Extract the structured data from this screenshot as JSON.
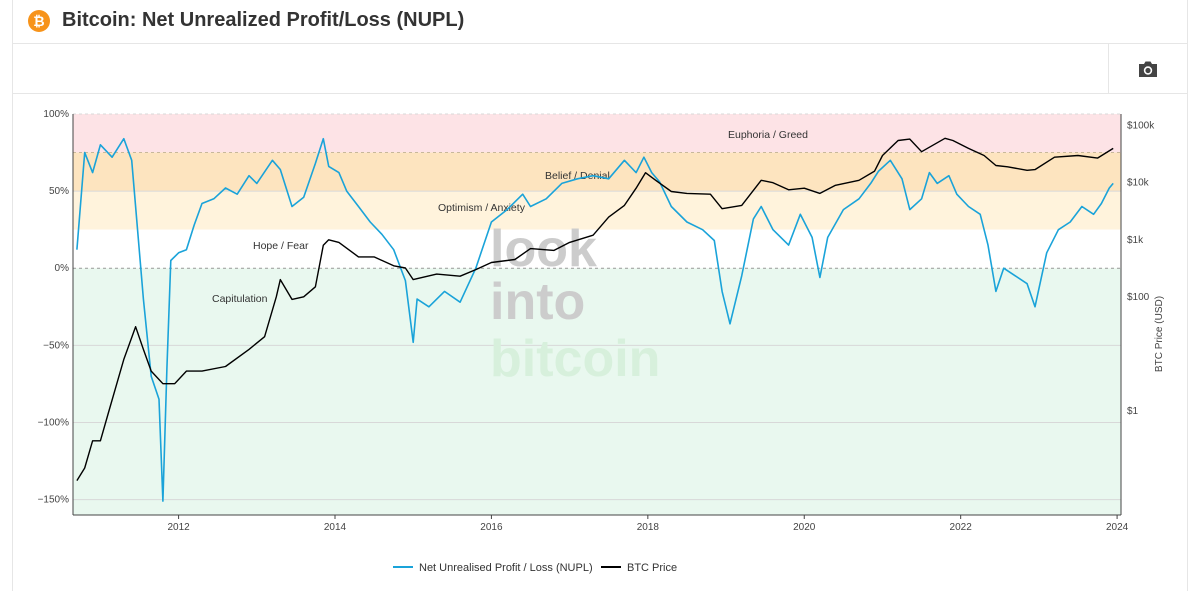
{
  "header": {
    "title": "Bitcoin: Net Unrealized Profit/Loss (NUPL)",
    "logo_glyph": "₿",
    "logo_color": "#f7931a"
  },
  "toolbar": {
    "camera_icon": "camera-icon"
  },
  "watermark": {
    "line1": "look",
    "line2": "into",
    "line3": "bitcoin"
  },
  "chart_data": {
    "type": "line",
    "x_ticks": [
      "2012",
      "2014",
      "2016",
      "2018",
      "2020",
      "2022",
      "2024"
    ],
    "x_range": [
      2010.65,
      2024.05
    ],
    "y_left": {
      "ticks": [
        "100%",
        "50%",
        "0%",
        "−50%",
        "−100%",
        "−150%"
      ],
      "tick_values": [
        100,
        50,
        0,
        -50,
        -100,
        -150
      ],
      "range": [
        -160,
        100
      ]
    },
    "y_right": {
      "label": "BTC Price (USD)",
      "scale": "log",
      "ticks": [
        "$100k",
        "$10k",
        "$1k",
        "$100",
        "$1"
      ],
      "tick_values": [
        100000,
        10000,
        1000,
        100,
        1
      ],
      "range": [
        0.015,
        160000
      ]
    },
    "zones": [
      {
        "label": "Euphoria / Greed",
        "from": 75,
        "to": 100,
        "color": "#fde3e6"
      },
      {
        "label": "Belief / Denial",
        "from": 50,
        "to": 75,
        "color": "#fde4bf"
      },
      {
        "label": "Optimism / Anxiety",
        "from": 25,
        "to": 50,
        "color": "#fff3dc"
      },
      {
        "label": "Hope / Fear",
        "from": 0,
        "to": 25,
        "color": "#ffffff"
      },
      {
        "label": "Capitulation",
        "from": -160,
        "to": 0,
        "color": "#e9f8ef"
      }
    ],
    "grid": true,
    "legend_position": "bottom-center",
    "series": [
      {
        "name": "Net Unrealised Profit / Loss (NUPL)",
        "axis": "left",
        "color": "#1aa3d9",
        "x": [
          2010.7,
          2010.8,
          2010.9,
          2011.0,
          2011.15,
          2011.3,
          2011.4,
          2011.45,
          2011.55,
          2011.65,
          2011.75,
          2011.8,
          2011.85,
          2011.9,
          2012.0,
          2012.1,
          2012.2,
          2012.3,
          2012.45,
          2012.6,
          2012.75,
          2012.9,
          2013.0,
          2013.2,
          2013.3,
          2013.45,
          2013.6,
          2013.75,
          2013.85,
          2013.92,
          2014.05,
          2014.15,
          2014.3,
          2014.45,
          2014.6,
          2014.75,
          2014.9,
          2015.0,
          2015.05,
          2015.2,
          2015.4,
          2015.6,
          2015.8,
          2016.0,
          2016.2,
          2016.4,
          2016.5,
          2016.7,
          2016.9,
          2017.1,
          2017.3,
          2017.5,
          2017.7,
          2017.85,
          2017.95,
          2018.05,
          2018.15,
          2018.3,
          2018.5,
          2018.7,
          2018.85,
          2018.95,
          2019.05,
          2019.2,
          2019.35,
          2019.45,
          2019.6,
          2019.8,
          2019.95,
          2020.1,
          2020.2,
          2020.3,
          2020.5,
          2020.7,
          2020.85,
          2020.95,
          2021.1,
          2021.25,
          2021.35,
          2021.5,
          2021.6,
          2021.7,
          2021.85,
          2021.95,
          2022.1,
          2022.25,
          2022.35,
          2022.45,
          2022.55,
          2022.7,
          2022.85,
          2022.95,
          2023.1,
          2023.25,
          2023.4,
          2023.55,
          2023.7,
          2023.8,
          2023.9,
          2023.95
        ],
        "y": [
          12,
          75,
          62,
          80,
          72,
          84,
          70,
          40,
          -20,
          -70,
          -85,
          -151,
          -65,
          5,
          10,
          12,
          28,
          42,
          45,
          52,
          48,
          60,
          55,
          70,
          64,
          40,
          46,
          68,
          84,
          66,
          62,
          50,
          40,
          30,
          22,
          12,
          -8,
          -48,
          -20,
          -25,
          -15,
          -22,
          0,
          30,
          38,
          48,
          40,
          45,
          55,
          58,
          60,
          58,
          70,
          62,
          72,
          62,
          56,
          40,
          30,
          25,
          18,
          -15,
          -36,
          -5,
          32,
          40,
          25,
          15,
          35,
          20,
          -6,
          20,
          38,
          45,
          55,
          63,
          70,
          58,
          38,
          45,
          62,
          55,
          60,
          48,
          40,
          35,
          15,
          -15,
          0,
          -5,
          -10,
          -25,
          10,
          25,
          30,
          40,
          35,
          42,
          52,
          55
        ]
      },
      {
        "name": "BTC Price",
        "axis": "right",
        "color": "#000000",
        "x": [
          2010.7,
          2010.8,
          2010.9,
          2011.0,
          2011.1,
          2011.3,
          2011.45,
          2011.55,
          2011.65,
          2011.8,
          2011.95,
          2012.1,
          2012.3,
          2012.6,
          2012.9,
          2013.1,
          2013.25,
          2013.3,
          2013.45,
          2013.6,
          2013.75,
          2013.85,
          2013.92,
          2014.05,
          2014.3,
          2014.5,
          2014.75,
          2014.9,
          2015.0,
          2015.3,
          2015.6,
          2015.8,
          2016.0,
          2016.3,
          2016.5,
          2016.8,
          2017.0,
          2017.3,
          2017.5,
          2017.7,
          2017.85,
          2017.97,
          2018.1,
          2018.3,
          2018.5,
          2018.8,
          2018.95,
          2019.2,
          2019.45,
          2019.6,
          2019.8,
          2020.0,
          2020.2,
          2020.4,
          2020.7,
          2020.9,
          2021.0,
          2021.2,
          2021.35,
          2021.5,
          2021.8,
          2021.9,
          2022.1,
          2022.3,
          2022.45,
          2022.6,
          2022.85,
          2022.95,
          2023.2,
          2023.5,
          2023.75,
          2023.95
        ],
        "y": [
          0.06,
          0.1,
          0.3,
          0.3,
          0.9,
          8,
          30,
          12,
          5,
          3,
          3,
          5,
          5,
          6,
          12,
          20,
          100,
          200,
          90,
          100,
          150,
          800,
          1000,
          900,
          500,
          500,
          350,
          320,
          200,
          250,
          230,
          300,
          400,
          450,
          700,
          650,
          900,
          1200,
          2500,
          4000,
          8000,
          15000,
          11000,
          7000,
          6500,
          6300,
          3500,
          4000,
          11000,
          10000,
          7500,
          8000,
          6500,
          9000,
          11000,
          16000,
          30000,
          55000,
          58000,
          35000,
          60000,
          55000,
          40000,
          30000,
          20000,
          19000,
          16500,
          17000,
          28000,
          30000,
          27000,
          40000
        ]
      }
    ]
  }
}
